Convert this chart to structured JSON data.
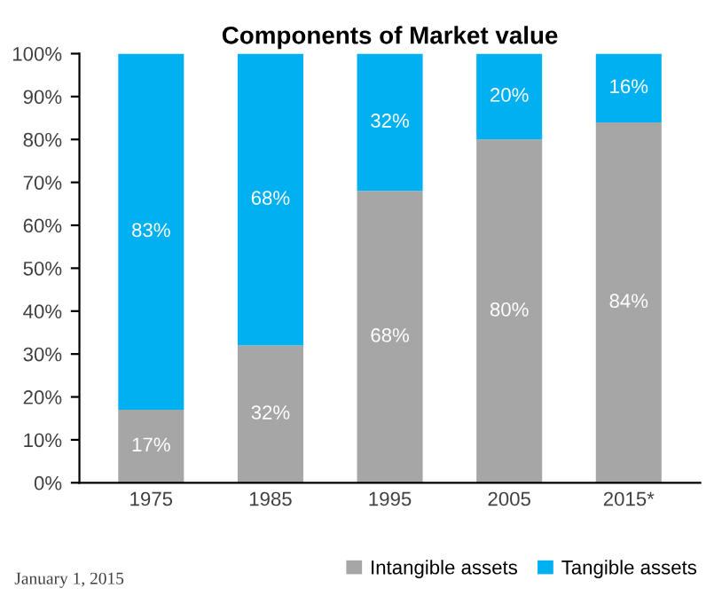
{
  "chart_data": {
    "type": "bar",
    "title": "Components of Market value",
    "categories": [
      "1975",
      "1985",
      "1995",
      "2005",
      "2015*"
    ],
    "stacked": true,
    "series": [
      {
        "name": "Intangible assets",
        "color": "#a6a6a6",
        "values": [
          17,
          32,
          68,
          80,
          84
        ],
        "value_labels": [
          "17%",
          "32%",
          "68%",
          "80%",
          "84%"
        ]
      },
      {
        "name": "Tangible assets",
        "color": "#00b0f0",
        "values": [
          83,
          68,
          32,
          20,
          16
        ],
        "value_labels": [
          "83%",
          "68%",
          "32%",
          "20%",
          "16%"
        ]
      }
    ],
    "ylim": [
      0,
      100
    ],
    "yticks": [
      {
        "value": 0,
        "label": "0%"
      },
      {
        "value": 10,
        "label": "10%"
      },
      {
        "value": 20,
        "label": "20%"
      },
      {
        "value": 30,
        "label": "30%"
      },
      {
        "value": 40,
        "label": "40%"
      },
      {
        "value": 50,
        "label": "50%"
      },
      {
        "value": 60,
        "label": "60%"
      },
      {
        "value": 70,
        "label": "70%"
      },
      {
        "value": 80,
        "label": "80%"
      },
      {
        "value": 90,
        "label": "90%"
      },
      {
        "value": 100,
        "label": "100%"
      }
    ],
    "grid": false,
    "legend": "bottom right",
    "annotations": [
      "January 1, 2015"
    ]
  }
}
